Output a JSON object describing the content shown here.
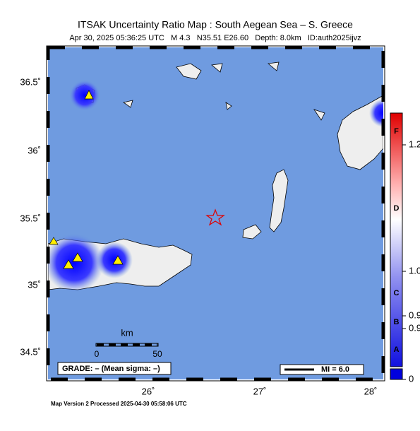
{
  "header": {
    "title": "ITSAK Uncertainty Ratio Map : South Aegean Sea – S. Greece",
    "subtitle": "Apr 30, 2025 05:36:25 UTC   M 4.3   N35.51 E26.60   Depth: 8.0km   ID:auth2025ijvz"
  },
  "map": {
    "lat_labels": [
      "36.5˚",
      "36˚",
      "35.5˚",
      "35˚",
      "34.5˚"
    ],
    "lon_labels": [
      "26˚",
      "27˚",
      "28˚"
    ],
    "scale_bar": {
      "unit": "km",
      "labels": [
        "0",
        "50"
      ]
    },
    "grade": "GRADE: – (Mean sigma: –)",
    "legend": "MI = 6.0"
  },
  "colorbar": {
    "tick_labels": [
      "1.2",
      "1.0",
      "0.9",
      "0.9",
      "0"
    ],
    "grades": [
      "F",
      "D",
      "C",
      "B",
      "A"
    ]
  },
  "footer": "Map Version 2 Processed 2025-04-30 05:58:06 UTC"
}
